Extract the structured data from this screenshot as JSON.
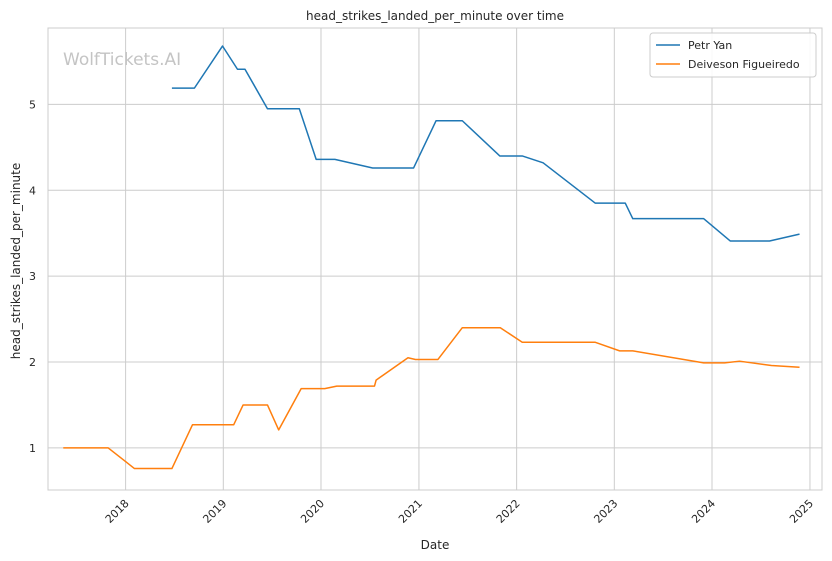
{
  "chart_data": {
    "type": "line",
    "title": "head_strikes_landed_per_minute over time",
    "xlabel": "Date",
    "ylabel": "head_strikes_landed_per_minute",
    "watermark": "WolfTickets.AI",
    "xlim": [
      "2017-03-17",
      "2025-02-15"
    ],
    "ylim": [
      0.51,
      5.89
    ],
    "x_ticks": [
      "2018",
      "2019",
      "2020",
      "2021",
      "2022",
      "2023",
      "2024",
      "2025"
    ],
    "y_ticks": [
      1,
      2,
      3,
      4,
      5
    ],
    "grid": true,
    "legend_position": "top-right",
    "series": [
      {
        "name": "Petr Yan",
        "color": "#1f77b4",
        "points": [
          [
            "2018-06-23",
            5.19
          ],
          [
            "2018-09-15",
            5.19
          ],
          [
            "2018-12-29",
            5.68
          ],
          [
            "2019-02-23",
            5.41
          ],
          [
            "2019-03-23",
            5.41
          ],
          [
            "2019-06-15",
            4.95
          ],
          [
            "2019-10-12",
            4.95
          ],
          [
            "2019-12-14",
            4.36
          ],
          [
            "2020-02-22",
            4.36
          ],
          [
            "2020-07-12",
            4.26
          ],
          [
            "2020-12-12",
            4.26
          ],
          [
            "2021-03-06",
            4.81
          ],
          [
            "2021-06-12",
            4.81
          ],
          [
            "2021-10-30",
            4.4
          ],
          [
            "2022-01-22",
            4.4
          ],
          [
            "2022-04-10",
            4.32
          ],
          [
            "2022-10-22",
            3.85
          ],
          [
            "2023-02-11",
            3.85
          ],
          [
            "2023-03-11",
            3.67
          ],
          [
            "2023-12-01",
            3.67
          ],
          [
            "2024-03-09",
            3.41
          ],
          [
            "2024-08-03",
            3.41
          ],
          [
            "2024-11-23",
            3.49
          ]
        ]
      },
      {
        "name": "Deiveson Figueiredo",
        "color": "#ff7f0e",
        "points": [
          [
            "2017-05-13",
            1.0
          ],
          [
            "2017-10-28",
            1.0
          ],
          [
            "2018-02-03",
            0.76
          ],
          [
            "2018-06-23",
            0.76
          ],
          [
            "2018-09-08",
            1.27
          ],
          [
            "2019-02-09",
            1.27
          ],
          [
            "2019-03-16",
            1.5
          ],
          [
            "2019-06-15",
            1.5
          ],
          [
            "2019-07-27",
            1.21
          ],
          [
            "2019-10-19",
            1.69
          ],
          [
            "2020-01-15",
            1.69
          ],
          [
            "2020-02-29",
            1.72
          ],
          [
            "2020-07-19",
            1.72
          ],
          [
            "2020-07-25",
            1.79
          ],
          [
            "2020-11-21",
            2.05
          ],
          [
            "2020-12-19",
            2.03
          ],
          [
            "2021-03-13",
            2.03
          ],
          [
            "2021-06-12",
            2.4
          ],
          [
            "2021-11-01",
            2.4
          ],
          [
            "2022-01-22",
            2.23
          ],
          [
            "2022-10-22",
            2.23
          ],
          [
            "2023-01-21",
            2.13
          ],
          [
            "2023-03-11",
            2.13
          ],
          [
            "2023-12-01",
            1.99
          ],
          [
            "2024-02-17",
            1.99
          ],
          [
            "2024-04-13",
            2.01
          ],
          [
            "2024-08-10",
            1.96
          ],
          [
            "2024-11-23",
            1.94
          ]
        ]
      }
    ]
  }
}
